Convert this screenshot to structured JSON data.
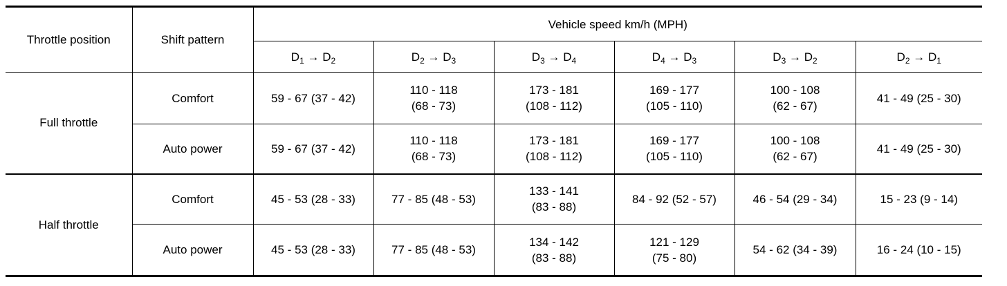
{
  "table": {
    "header": {
      "throttle": "Throttle position",
      "pattern": "Shift pattern",
      "speed": "Vehicle speed km/h (MPH)",
      "columns": [
        [
          "D",
          "1",
          " → ",
          "D",
          "2"
        ],
        [
          "D",
          "2",
          " → ",
          "D",
          "3"
        ],
        [
          "D",
          "3",
          " → ",
          "D",
          "4"
        ],
        [
          "D",
          "4",
          " → ",
          "D",
          "3"
        ],
        [
          "D",
          "3",
          " → ",
          "D",
          "2"
        ],
        [
          "D",
          "2",
          " → ",
          "D",
          "1"
        ]
      ]
    },
    "groups": [
      {
        "throttle": "Full throttle",
        "rows": [
          {
            "pattern": "Comfort",
            "cells": [
              "59 - 67 (37 - 42)",
              [
                "110 - 118",
                "(68 - 73)"
              ],
              [
                "173 - 181",
                "(108 - 112)"
              ],
              [
                "169 - 177",
                "(105 - 110)"
              ],
              [
                "100 - 108",
                "(62 - 67)"
              ],
              "41 - 49 (25 - 30)"
            ]
          },
          {
            "pattern": "Auto power",
            "cells": [
              "59 - 67 (37 - 42)",
              [
                "110 - 118",
                "(68 - 73)"
              ],
              [
                "173 - 181",
                "(108 - 112)"
              ],
              [
                "169 - 177",
                "(105 - 110)"
              ],
              [
                "100 - 108",
                "(62 - 67)"
              ],
              "41 - 49 (25 - 30)"
            ]
          }
        ]
      },
      {
        "throttle": "Half throttle",
        "rows": [
          {
            "pattern": "Comfort",
            "cells": [
              "45 - 53 (28 - 33)",
              "77 - 85 (48 - 53)",
              [
                "133 - 141",
                "(83 - 88)"
              ],
              "84 - 92 (52 - 57)",
              "46 - 54 (29 - 34)",
              "15 - 23 (9 - 14)"
            ]
          },
          {
            "pattern": "Auto power",
            "cells": [
              "45 - 53 (28 - 33)",
              "77 - 85 (48 - 53)",
              [
                "134 - 142",
                "(83 - 88)"
              ],
              [
                "121 - 129",
                "(75 - 80)"
              ],
              "54 - 62 (34 - 39)",
              "16 - 24 (10 - 15)"
            ]
          }
        ]
      }
    ]
  }
}
